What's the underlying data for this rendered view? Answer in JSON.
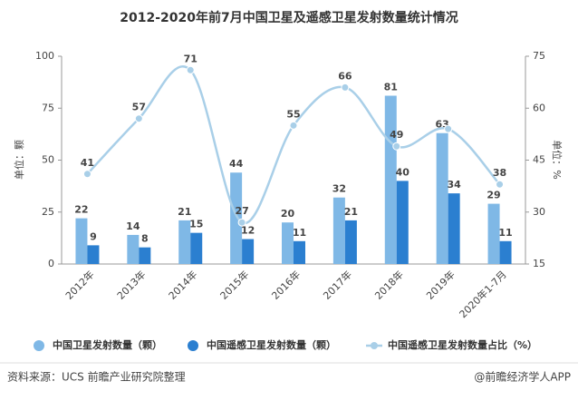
{
  "chart_data": {
    "type": "bar-line",
    "title": "2012-2020年前7月中国卫星及遥感卫星发射数量统计情况",
    "categories": [
      "2012年",
      "2013年",
      "2014年",
      "2015年",
      "2016年",
      "2017年",
      "2018年",
      "2019年",
      "2020年1-7月"
    ],
    "series": [
      {
        "name": "中国卫星发射数量（颗）",
        "color": "#7fb8e6",
        "type": "bar",
        "values": [
          22,
          14,
          21,
          44,
          20,
          32,
          81,
          63,
          29
        ]
      },
      {
        "name": "中国遥感卫星发射数量（颗）",
        "color": "#2b7fd0",
        "type": "bar",
        "values": [
          9,
          8,
          15,
          12,
          11,
          21,
          40,
          34,
          11
        ]
      },
      {
        "name": "中国遥感卫星发射数量占比（%）",
        "color": "#a9cfe8",
        "type": "line",
        "axis": "y2",
        "values": [
          41,
          57,
          71,
          27,
          55,
          66,
          49,
          54,
          38
        ],
        "value_labels": [
          "41",
          "57",
          "71",
          "27",
          "55",
          "66",
          "49",
          null,
          "38"
        ]
      }
    ],
    "ylabel": "单位：颗",
    "y2label": "单位：%",
    "ylim": [
      0,
      100
    ],
    "yticks": [
      0,
      25,
      50,
      75,
      100
    ],
    "y2lim": [
      15,
      75
    ],
    "y2ticks": [
      15,
      30,
      45,
      60,
      75
    ],
    "source": "资料来源：UCS 前瞻产业研究院整理",
    "credit": "@前瞻经济学人APP"
  }
}
